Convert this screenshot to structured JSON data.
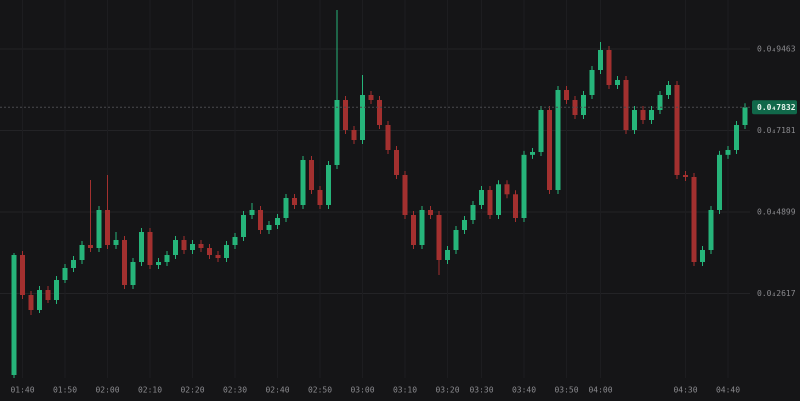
{
  "chart_data": {
    "type": "candlestick",
    "up_color": "#26b47a",
    "down_color": "#a3302f",
    "grid": true,
    "ylim": [
      2.51e-06,
      0.00010835
    ],
    "yticks": [
      {
        "value": 9.463e-05,
        "label": "0.0₄9463"
      },
      {
        "value": 7.181e-05,
        "label": "0.0₄7181"
      },
      {
        "value": 4.899e-05,
        "label": "0.0₄4899"
      },
      {
        "value": 2.617e-05,
        "label": "0.0₄2617"
      }
    ],
    "xticks": [
      {
        "value": 1,
        "label": "01:40"
      },
      {
        "value": 6,
        "label": "01:50"
      },
      {
        "value": 11,
        "label": "02:00"
      },
      {
        "value": 16,
        "label": "02:10"
      },
      {
        "value": 21,
        "label": "02:20"
      },
      {
        "value": 26,
        "label": "02:30"
      },
      {
        "value": 31,
        "label": "02:40"
      },
      {
        "value": 36,
        "label": "02:50"
      },
      {
        "value": 41,
        "label": "03:00"
      },
      {
        "value": 46,
        "label": "03:10"
      },
      {
        "value": 51,
        "label": "03:20"
      },
      {
        "value": 55,
        "label": "03:30"
      },
      {
        "value": 60,
        "label": "03:40"
      },
      {
        "value": 65,
        "label": "03:50"
      },
      {
        "value": 69,
        "label": "04:00"
      },
      {
        "value": 79,
        "label": "04:30"
      },
      {
        "value": 84,
        "label": "04:40"
      }
    ],
    "last_price": {
      "value": 7.832e-05,
      "label": "0.0₄7832"
    },
    "series": [
      {
        "open": [
          3.35e-06,
          3.695e-05,
          2.575e-05,
          2.155e-05,
          2.715e-05,
          2.435e-05,
          2.995e-05,
          3.331e-05,
          3.555e-05,
          3.975e-05,
          3.891e-05,
          4.955e-05,
          3.975e-05,
          4.115e-05,
          2.855e-05,
          3.499e-05,
          4.339e-05,
          3.415e-05,
          3.499e-05,
          3.695e-05,
          4.115e-05,
          3.835e-05,
          4.003e-05,
          3.891e-05,
          3.695e-05,
          3.611e-05,
          3.975e-05,
          4.199e-05,
          4.815e-05,
          4.955e-05,
          4.395e-05,
          4.535e-05,
          4.731e-05,
          5.291e-05,
          5.095e-05,
          6.355e-05,
          5.515e-05,
          5.095e-05,
          6.215e-05,
          8.035e-05,
          7.195e-05,
          6.915e-05,
          8.175e-05,
          8.035e-05,
          7.335e-05,
          6.635e-05,
          5.935e-05,
          4.815e-05,
          3.975e-05,
          4.955e-05,
          4.815e-05,
          3.555e-05,
          3.835e-05,
          4.395e-05,
          4.675e-05,
          5.095e-05,
          5.515e-05,
          4.815e-05,
          5.675e-05,
          5.395e-05,
          4.731e-05,
          6.499e-05,
          6.579e-05,
          7.755e-05,
          5.515e-05,
          8.315e-05,
          8.035e-05,
          7.615e-05,
          8.175e-05,
          8.875e-05,
          9.435e-05,
          8.455e-05,
          8.595e-05,
          7.195e-05,
          7.755e-05,
          7.475e-05,
          7.755e-05,
          8.175e-05,
          8.455e-05,
          5.935e-05,
          5.879e-05,
          3.499e-05,
          3.835e-05,
          4.955e-05,
          6.499e-05,
          6.635e-05,
          7.335e-05
        ],
        "high": [
          3.751e-05,
          3.807e-05,
          2.687e-05,
          2.827e-05,
          2.827e-05,
          3.107e-05,
          3.443e-05,
          3.667e-05,
          4.087e-05,
          5.795e-05,
          5.067e-05,
          5.935e-05,
          4.339e-05,
          4.227e-05,
          3.611e-05,
          4.451e-05,
          4.451e-05,
          3.611e-05,
          3.807e-05,
          4.227e-05,
          4.227e-05,
          4.115e-05,
          4.115e-05,
          4.003e-05,
          3.807e-05,
          4.087e-05,
          4.311e-05,
          4.927e-05,
          5.151e-05,
          5.067e-05,
          4.647e-05,
          4.843e-05,
          5.403e-05,
          5.403e-05,
          6.467e-05,
          6.467e-05,
          5.627e-05,
          6.327e-05,
          0.00010555,
          8.147e-05,
          7.307e-05,
          8.735e-05,
          8.287e-05,
          8.147e-05,
          7.447e-05,
          6.747e-05,
          6.047e-05,
          4.927e-05,
          5.067e-05,
          5.067e-05,
          4.927e-05,
          3.947e-05,
          4.507e-05,
          4.787e-05,
          5.207e-05,
          5.627e-05,
          5.627e-05,
          5.787e-05,
          5.787e-05,
          5.507e-05,
          6.611e-05,
          6.691e-05,
          7.867e-05,
          7.867e-05,
          8.427e-05,
          8.427e-05,
          8.147e-05,
          8.287e-05,
          8.987e-05,
          9.659e-05,
          9.547e-05,
          8.707e-05,
          8.707e-05,
          7.867e-05,
          7.867e-05,
          7.867e-05,
          8.287e-05,
          8.567e-05,
          8.567e-05,
          6.047e-05,
          5.991e-05,
          3.947e-05,
          5.067e-05,
          6.611e-05,
          6.747e-05,
          7.447e-05,
          7.944e-05
        ],
        "low": [
          2.51e-06,
          2.463e-05,
          2.015e-05,
          2.071e-05,
          2.351e-05,
          2.323e-05,
          2.911e-05,
          3.219e-05,
          3.443e-05,
          3.779e-05,
          3.779e-05,
          3.863e-05,
          3.863e-05,
          2.743e-05,
          2.743e-05,
          3.387e-05,
          3.303e-05,
          3.303e-05,
          3.387e-05,
          3.583e-05,
          3.723e-05,
          3.723e-05,
          3.779e-05,
          3.583e-05,
          3.499e-05,
          3.499e-05,
          3.863e-05,
          4.087e-05,
          4.703e-05,
          4.283e-05,
          4.283e-05,
          4.423e-05,
          4.619e-05,
          4.983e-05,
          4.983e-05,
          5.403e-05,
          4.983e-05,
          4.983e-05,
          6.103e-05,
          7.083e-05,
          6.803e-05,
          6.803e-05,
          7.923e-05,
          7.223e-05,
          6.523e-05,
          5.823e-05,
          4.703e-05,
          3.863e-05,
          3.863e-05,
          4.703e-05,
          3.135e-05,
          3.443e-05,
          3.723e-05,
          4.283e-05,
          4.563e-05,
          4.983e-05,
          4.703e-05,
          4.703e-05,
          5.283e-05,
          4.619e-05,
          4.619e-05,
          6.387e-05,
          6.467e-05,
          5.403e-05,
          5.403e-05,
          7.923e-05,
          7.503e-05,
          7.503e-05,
          8.063e-05,
          8.763e-05,
          8.343e-05,
          8.343e-05,
          7.083e-05,
          7.083e-05,
          7.363e-05,
          7.363e-05,
          7.643e-05,
          8.063e-05,
          5.823e-05,
          5.767e-05,
          3.387e-05,
          3.387e-05,
          3.723e-05,
          4.843e-05,
          6.387e-05,
          6.523e-05,
          7.223e-05
        ],
        "close": [
          3.695e-05,
          2.575e-05,
          2.155e-05,
          2.715e-05,
          2.435e-05,
          2.995e-05,
          3.331e-05,
          3.555e-05,
          3.975e-05,
          3.891e-05,
          4.955e-05,
          3.975e-05,
          4.115e-05,
          2.855e-05,
          3.499e-05,
          4.339e-05,
          3.415e-05,
          3.499e-05,
          3.695e-05,
          4.115e-05,
          3.835e-05,
          4.003e-05,
          3.891e-05,
          3.695e-05,
          3.611e-05,
          3.975e-05,
          4.199e-05,
          4.815e-05,
          4.955e-05,
          4.395e-05,
          4.535e-05,
          4.731e-05,
          5.291e-05,
          5.095e-05,
          6.355e-05,
          5.515e-05,
          5.095e-05,
          6.215e-05,
          8.035e-05,
          7.195e-05,
          6.915e-05,
          8.175e-05,
          8.035e-05,
          7.335e-05,
          6.635e-05,
          5.935e-05,
          4.815e-05,
          3.975e-05,
          4.955e-05,
          4.815e-05,
          3.555e-05,
          3.835e-05,
          4.395e-05,
          4.675e-05,
          5.095e-05,
          5.515e-05,
          4.815e-05,
          5.675e-05,
          5.395e-05,
          4.731e-05,
          6.499e-05,
          6.579e-05,
          7.755e-05,
          5.515e-05,
          8.315e-05,
          8.035e-05,
          7.615e-05,
          8.175e-05,
          8.875e-05,
          9.435e-05,
          8.455e-05,
          8.595e-05,
          7.195e-05,
          7.755e-05,
          7.475e-05,
          7.755e-05,
          8.175e-05,
          8.455e-05,
          5.935e-05,
          5.879e-05,
          3.499e-05,
          3.835e-05,
          4.955e-05,
          6.499e-05,
          6.635e-05,
          7.335e-05,
          7.832e-05
        ]
      }
    ]
  }
}
